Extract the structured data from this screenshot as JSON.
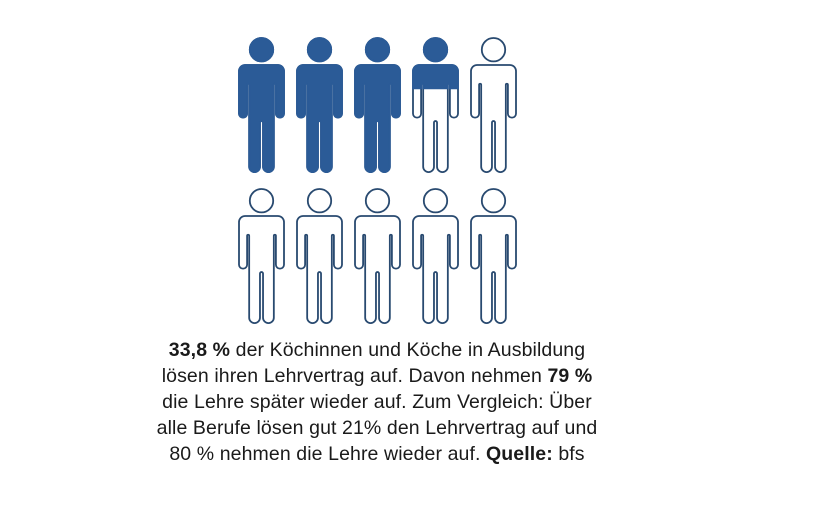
{
  "pictogram": {
    "rows": 2,
    "icons_per_row": 5,
    "total_icons": 10,
    "filled_icons_value": 3.38,
    "fill_color": "#2B5B97",
    "outline_color": "#294A70"
  },
  "caption": {
    "text_color": "#1A1A1A",
    "lines": [
      {
        "segments": [
          {
            "text": "33,8 %",
            "bold": true
          },
          {
            "text": " der Köchinnen und Köche in Ausbildung",
            "bold": false
          }
        ]
      },
      {
        "segments": [
          {
            "text": "lösen ihren Lehrvertrag auf. Davon nehmen ",
            "bold": false
          },
          {
            "text": "79 %",
            "bold": true
          }
        ]
      },
      {
        "segments": [
          {
            "text": "die Lehre später wieder auf. Zum Vergleich: Über",
            "bold": false
          }
        ]
      },
      {
        "segments": [
          {
            "text": "alle Berufe lösen gut 21% den Lehrvertrag auf und",
            "bold": false
          }
        ]
      },
      {
        "segments": [
          {
            "text": "80 % nehmen die Lehre wieder auf. ",
            "bold": false
          },
          {
            "text": "Quelle:",
            "bold": true
          },
          {
            "text": " bfs",
            "bold": false
          }
        ]
      }
    ]
  },
  "chart_data": {
    "type": "pictogram",
    "icon": "person",
    "total_icons": 10,
    "highlighted_icons": 3.38,
    "highlighted_percent": 33.8,
    "rows": 2,
    "icons_per_row": 5,
    "values": {
      "koechinnen_koeche_lehrvertrag_aufloesung_pct": 33.8,
      "davon_wiederaufnahme_lehre_pct": 79,
      "alle_berufe_lehrvertrag_aufloesung_pct": 21,
      "alle_berufe_wiederaufnahme_lehre_pct": 80
    },
    "source": "bfs",
    "legend_position": "none",
    "grid": false
  }
}
